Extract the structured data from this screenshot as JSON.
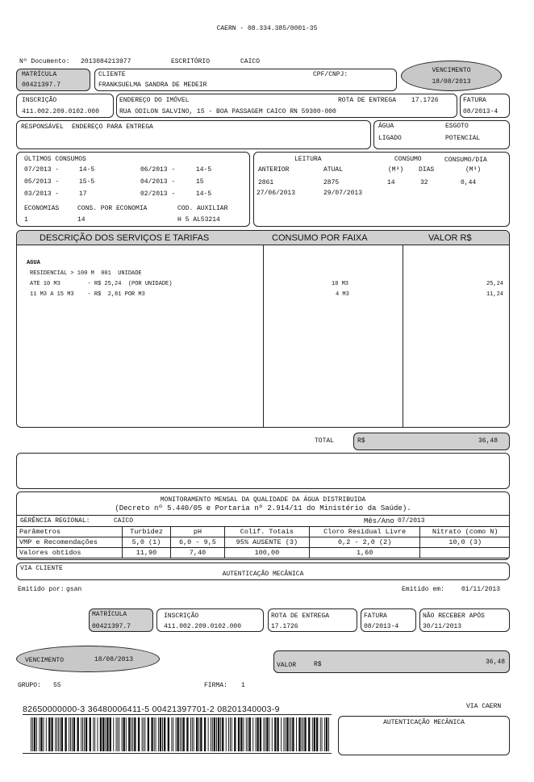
{
  "header": {
    "title": "CAERN - 08.334.385/0001-35",
    "documento_label": "Nº Documento:",
    "documento": "2013084213977",
    "escritorio_label": "ESCRITÓRIO",
    "escritorio": "CAICO"
  },
  "matricula": {
    "label": "MATRÍCULA",
    "value": "00421397.7"
  },
  "cliente": {
    "label": "CLIENTE",
    "name": "FRANKSUELMA SANDRA DE MEDEIR",
    "cpf_label": "CPF/CNPJ:"
  },
  "vencimento": {
    "label": "VENCIMENTO",
    "value": "18/08/2013"
  },
  "inscricao": {
    "label": "INSCRIÇÃO",
    "value": "411.002.209.0102.000"
  },
  "endereco": {
    "label": "ENDEREÇO DO IMÓVEL",
    "rota_label": "ROTA DE ENTREGA",
    "rota": "17.1726",
    "value": "RUA  ODILON SALVINO,  15 - BOA PASSAGEM CAICO RN 59300-000"
  },
  "fatura": {
    "label": "FATURA",
    "value": "08/2013-4"
  },
  "responsavel": {
    "label": "RESPONSÁVEL",
    "entrega_label": "ENDEREÇO PARA ENTREGA"
  },
  "ligacao": {
    "agua_label": "ÁGUA",
    "esgoto_label": "ESGOTO",
    "agua": "LIGADO",
    "esgoto": "POTENCIAL"
  },
  "consumos": {
    "label": "ÚLTIMOS CONSUMOS",
    "items": [
      {
        "mes": "07/2013 -",
        "valor": "14-5"
      },
      {
        "mes": "06/2013 -",
        "valor": "14-5"
      },
      {
        "mes": "05/2013 -",
        "valor": "15-5"
      },
      {
        "mes": "04/2013 -",
        "valor": "15"
      },
      {
        "mes": "03/2013 -",
        "valor": "17"
      },
      {
        "mes": "02/2013 -",
        "valor": "14-5"
      }
    ],
    "economias_label": "ECONOMIAS",
    "economias": "1",
    "cons_label": "CONS. POR ECONOMIA",
    "cons": "14",
    "cod_label": "COD. AUXILIAR",
    "cod": "H 5 AL53214"
  },
  "leitura": {
    "label": "LEITURA",
    "consumo_label": "CONSUMO",
    "consumo_dia_label": "CONSUMO/DIA",
    "anterior_label": "ANTERIOR",
    "atual_label": "ATUAL",
    "m3_label": "(M³)",
    "dias_label": "DIAS",
    "m3_dia_label": "(M³)",
    "anterior": "2861",
    "atual": "2875",
    "consumo": "14",
    "dias": "32",
    "consumo_dia": "0,44",
    "data_anterior": "27/06/2013",
    "data_atual": "29/07/2013"
  },
  "servicos": {
    "headers": [
      "DESCRIÇÃO DOS SERVIÇOS E TARIFAS",
      "CONSUMO POR FAIXA",
      "VALOR R$"
    ],
    "lines": [
      "AGUA",
      "RESIDENCIAL > 100 M  001  UNIDADE",
      "ATE 10 M3        - R$ 25,24  (POR UNIDADE)",
      "11 M3 A 15 M3    - R$  2,81 POR M3"
    ],
    "faixas": [
      "10 M3",
      "4 M3"
    ],
    "valores": [
      "25,24",
      "11,24"
    ]
  },
  "total": {
    "label": "TOTAL",
    "currency": "R$",
    "value": "36,48"
  },
  "qualidade": {
    "title1": "MONITORAMENTO MENSAL DA QUALIDADE DA ÁGUA DISTRIBUIDA",
    "title2": "(Decreto nº 5.440/05 e Portaria nº 2.914/11 do Ministério da Saúde).",
    "gerencia_label": "GERÊNCIA REGIONAL:",
    "gerencia": "CAICO",
    "mes_label": "Mês/Ano",
    "mes": "07/2013",
    "rows": [
      [
        "Parâmetros",
        "Turbidez",
        "pH",
        "Colif. Totais",
        "Cloro Residual Livre",
        "Nitrato (como N)"
      ],
      [
        "VMP e Recomendações",
        "5,0 (1)",
        "6,0 - 9,5",
        "95% AUSENTE (3)",
        "0,2 - 2,0 (2)",
        "10,0 (3)"
      ],
      [
        "Valores obtidos",
        "11,90",
        "7,40",
        "100,00",
        "1,60",
        ""
      ]
    ]
  },
  "via_cliente": {
    "label": "VIA CLIENTE",
    "autenticacao": "AUTENTICAÇÃO MECÂNICA"
  },
  "emissao": {
    "por_label": "Emitido por:",
    "por": "gsan",
    "em_label": "Emitido em:",
    "em": "01/11/2013"
  },
  "canhoto": {
    "matricula_label": "MATRÍCULA",
    "matricula": "00421397.7",
    "inscricao_label": "INSCRIÇÃO",
    "inscricao": "411.002.209.0102.000",
    "rota_label": "ROTA DE ENTREGA",
    "rota": "17.1726",
    "fatura_label": "FATURA",
    "fatura": "08/2013-4",
    "nao_receber_label": "NÃO RECEBER APÓS",
    "nao_receber": "30/11/2013",
    "vencimento_label": "VENCIMENTO",
    "vencimento": "18/08/2013",
    "valor_label": "VALOR",
    "currency": "R$",
    "valor": "36,48",
    "grupo_label": "GRUPO:",
    "grupo": "55",
    "firma_label": "FIRMA:",
    "firma": "1",
    "linha_digitavel": "82650000000-3 36480006411-5 00421397701-2 08201340003-9",
    "via_label": "VIA CAERN",
    "autenticacao": "AUTENTICAÇÃO MECÂNICA"
  }
}
